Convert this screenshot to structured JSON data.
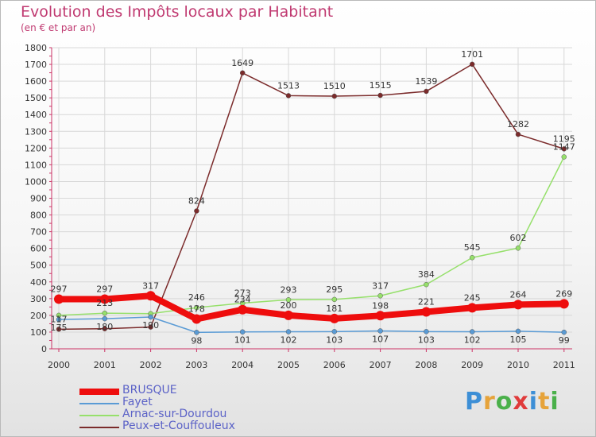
{
  "title": "Evolution des Impôts locaux par Habitant",
  "subtitle": "(en € et par an)",
  "logo": {
    "letters": [
      "P",
      "r",
      "o",
      "x",
      "i",
      "t",
      "i"
    ]
  },
  "chart_data": {
    "type": "line",
    "title": "Evolution des Impôts locaux par Habitant",
    "subtitle": "(en € et par an)",
    "xlabel": "",
    "ylabel": "",
    "x": [
      "2000",
      "2001",
      "2002",
      "2003",
      "2004",
      "2005",
      "2006",
      "2007",
      "2008",
      "2009",
      "2010",
      "2011"
    ],
    "ylim": [
      0,
      1800
    ],
    "yticks": [
      0,
      100,
      200,
      300,
      400,
      500,
      600,
      700,
      800,
      900,
      1000,
      1100,
      1200,
      1300,
      1400,
      1500,
      1600,
      1700,
      1800
    ],
    "ytick_labels": [
      "0",
      "100",
      "200",
      "300",
      "400",
      "500",
      "600",
      "700",
      "800",
      "900",
      "1000",
      "1100",
      "1200",
      "1300",
      "1400",
      "1500",
      "1600",
      "1700",
      "1800"
    ],
    "grid": true,
    "legend_position": "bottom-left",
    "series": [
      {
        "name": "BRUSQUE",
        "color": "#ee0d0d",
        "values": [
          297,
          297,
          317,
          178,
          234,
          200,
          181,
          198,
          221,
          245,
          264,
          269
        ],
        "labels": [
          "297",
          "297",
          "317",
          "178",
          "234",
          "200",
          "181",
          "198",
          "221",
          "245",
          "264",
          "269"
        ]
      },
      {
        "name": "Fayet",
        "color": "#5a9bd5",
        "values": [
          175,
          180,
          190,
          98,
          101,
          102,
          103,
          107,
          103,
          102,
          105,
          99
        ],
        "labels": [
          "175",
          "180",
          "190",
          "98",
          "101",
          "102",
          "103",
          "107",
          "103",
          "102",
          "105",
          "99"
        ]
      },
      {
        "name": "Arnac-sur-Dourdou",
        "color": "#96e06b",
        "values": [
          200,
          213,
          210,
          246,
          273,
          293,
          295,
          317,
          384,
          545,
          602,
          1147
        ],
        "labels": [
          "",
          "213",
          "",
          "246",
          "273",
          "293",
          "295",
          "317",
          "384",
          "545",
          "602",
          "1147"
        ]
      },
      {
        "name": "Peux-et-Couffouleux",
        "color": "#7b2b2b",
        "values": [
          117,
          120,
          130,
          824,
          1649,
          1513,
          1510,
          1515,
          1539,
          1701,
          1282,
          1195
        ],
        "labels": [
          "117",
          "",
          "",
          "824",
          "1649",
          "1513",
          "1510",
          "1515",
          "1539",
          "1701",
          "1282",
          "1195"
        ]
      }
    ]
  }
}
